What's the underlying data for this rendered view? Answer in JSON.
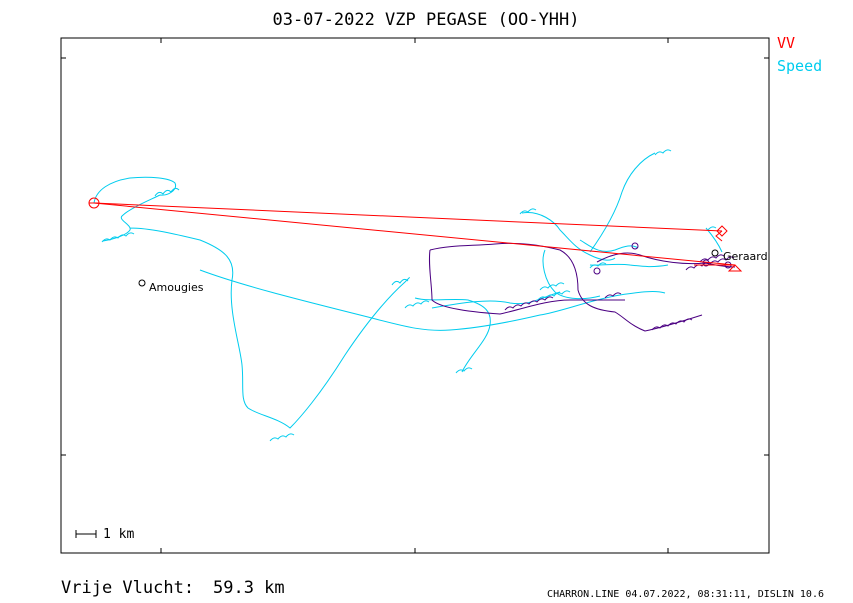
{
  "chart_data": {
    "type": "line",
    "title": "03-07-2022   VZP   PEGASE (OO-YHH)",
    "legend": [
      {
        "name": "VV",
        "color": "#ff0000"
      },
      {
        "name": "Speed",
        "color": "#00ccee"
      }
    ],
    "grid": false,
    "scale_label": "1  km",
    "places": [
      {
        "name": "Amougies"
      },
      {
        "name": "Geraard"
      }
    ],
    "series": [
      {
        "name": "VV",
        "color": "#ff0000"
      },
      {
        "name": "Speed",
        "color": "#00ccee"
      },
      {
        "name": "",
        "color": "#4b0082"
      }
    ]
  },
  "footer": {
    "distance_label": "Vrije Vlucht:",
    "distance_value": "59.3 km",
    "credit": "CHARRON.LINE 04.07.2022, 08:31:11, DISLIN 10.6"
  },
  "colors": {
    "vv": "#ff0000",
    "speed": "#00ccee",
    "track": "#4b0082"
  }
}
